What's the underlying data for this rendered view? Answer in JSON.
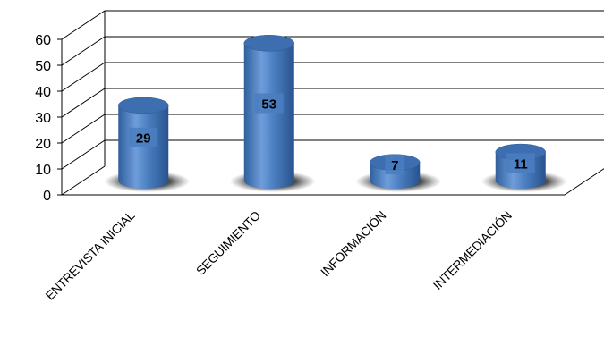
{
  "chart_data": {
    "type": "bar",
    "categories": [
      "ENTREVISTA INICIAL",
      "SEGUIMIENTO",
      "INFORMACIÓN",
      "INTERMEDIACIÓN"
    ],
    "values": [
      29,
      53,
      7,
      11
    ],
    "data_labels": [
      "29",
      "53",
      "7",
      "11"
    ],
    "title": "",
    "xlabel": "",
    "ylabel": "",
    "ylim": [
      0,
      60
    ],
    "yticks": [
      "0",
      "10",
      "20",
      "30",
      "40",
      "50",
      "60"
    ],
    "grid": true,
    "legend": "none",
    "style": "3d-cylinder",
    "colors": {
      "bar": "#4a7ebf",
      "bar_dark": "#2c5a95",
      "bar_light": "#7aa6de",
      "grid": "#000000"
    }
  }
}
